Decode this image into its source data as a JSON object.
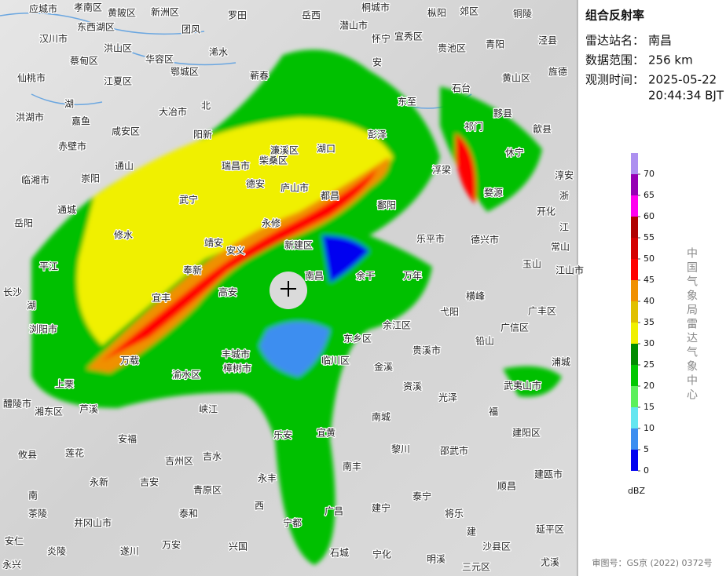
{
  "panel": {
    "title": "组合反射率",
    "station_label": "雷达站名：",
    "station": "南昌",
    "range_label": "数据范围：",
    "range": "256 km",
    "time_label": "观测时间：",
    "date": "2025-05-22",
    "time": "20:44:34 BJT",
    "credit": "中国气象局雷达气象中心",
    "approval": "审图号：GS京 (2022) 0372号"
  },
  "legend": {
    "unit": "dBZ",
    "ticks": [
      0,
      5,
      10,
      15,
      20,
      25,
      30,
      35,
      40,
      45,
      50,
      55,
      60,
      65,
      70
    ],
    "colors": [
      "#0000f0",
      "#3c8ef0",
      "#64e6f0",
      "#5cf05c",
      "#00c800",
      "#008c00",
      "#f0f000",
      "#e0c000",
      "#f09000",
      "#ff0000",
      "#d40000",
      "#b00000",
      "#ff00f0",
      "#9600b4",
      "#ad90f0"
    ]
  },
  "places": [
    "应城市",
    "孝南区",
    "黄陂区",
    "新洲区",
    "罗田",
    "岳西",
    "桐城市",
    "枞阳",
    "郊区",
    "铜陵",
    "汉川市",
    "东西湖区",
    "洪山区",
    "团风",
    "潜山市",
    "怀宁",
    "宜秀区",
    "贵池区",
    "青阳",
    "泾县",
    "蔡甸区",
    "华容区",
    "浠水",
    "仙桃市",
    "江夏区",
    "鄂城区",
    "蕲春",
    "安",
    "东至",
    "石台",
    "黄山区",
    "旌德",
    "湖",
    "北",
    "大冶市",
    "洪湖市",
    "嘉鱼",
    "咸安区",
    "阳新",
    "祁门",
    "黟县",
    "歙县",
    "赤壁市",
    "临湘市",
    "崇阳",
    "通山",
    "瑞昌市",
    "柴桑区",
    "濂溪区",
    "湖口",
    "彭泽",
    "浮梁",
    "休宁",
    "婺源",
    "淳安",
    "德安",
    "庐山市",
    "都昌",
    "鄱阳",
    "武宁",
    "通城",
    "岳阳",
    "修水",
    "永修",
    "新建区",
    "乐平市",
    "德兴市",
    "开化",
    "浙",
    "江",
    "常山",
    "玉山",
    "江山市",
    "平江",
    "安义",
    "靖安",
    "南昌",
    "余干",
    "万年",
    "长沙",
    "湖",
    "奉新",
    "高安",
    "横峰",
    "弋阳",
    "广丰区",
    "浏阳市",
    "宜丰",
    "丰城市",
    "余江区",
    "东乡区",
    "贵溪市",
    "铅山",
    "广信区",
    "万载",
    "渝水区",
    "樟树市",
    "临川区",
    "金溪",
    "浦城",
    "武夷山市",
    "醴陵市",
    "上栗",
    "湘东区",
    "芦溪",
    "峡江",
    "资溪",
    "光泽",
    "福",
    "宜黄",
    "南城",
    "乐安",
    "安福",
    "建阳区",
    "攸县",
    "莲花",
    "吉州区",
    "吉水",
    "黎川",
    "邵武市",
    "永新",
    "吉安",
    "青原区",
    "永丰",
    "南丰",
    "建瓯市",
    "顺昌",
    "南",
    "茶陵",
    "泰和",
    "西",
    "广昌",
    "泰宁",
    "将乐",
    "井冈山市",
    "宁都",
    "建宁",
    "建",
    "延平区",
    "安仁",
    "炎陵",
    "遂川",
    "万安",
    "兴国",
    "石城",
    "宁化",
    "沙县区",
    "明溪",
    "永兴",
    "三元区",
    "尤溪"
  ]
}
